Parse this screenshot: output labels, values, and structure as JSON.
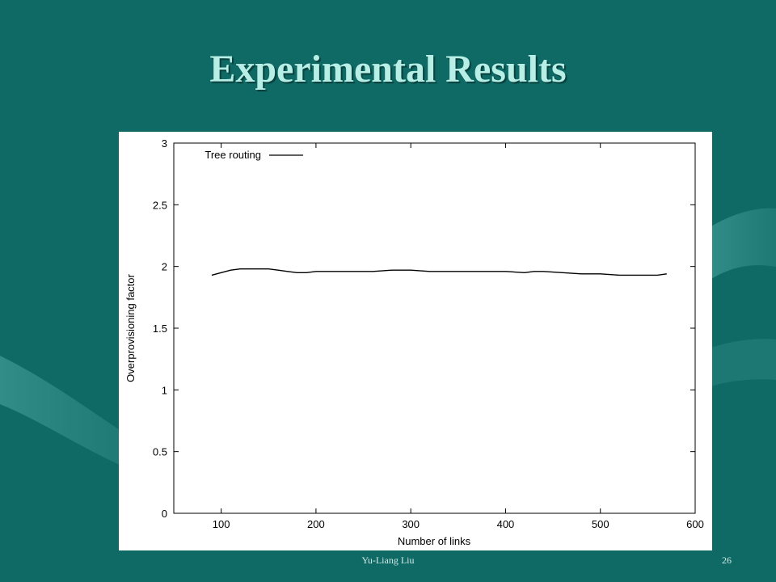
{
  "slide": {
    "title": "Experimental Results",
    "author": "Yu-Liang Liu",
    "page_number": "26"
  },
  "colors": {
    "background": "#0f6a66",
    "title": "#b7eee6",
    "line": "#000000"
  },
  "chart_data": {
    "type": "line",
    "title": "",
    "xlabel": "Number of links",
    "ylabel": "Overprovisioning factor",
    "xlim": [
      50,
      600
    ],
    "ylim": [
      0,
      3
    ],
    "xticks": [
      100,
      200,
      300,
      400,
      500,
      600
    ],
    "yticks": [
      0,
      0.5,
      1,
      1.5,
      2,
      2.5,
      3
    ],
    "legend_position": "top-left",
    "grid": false,
    "series": [
      {
        "name": "Tree routing",
        "color": "#000000",
        "x": [
          90,
          100,
          110,
          120,
          130,
          140,
          150,
          160,
          170,
          180,
          190,
          200,
          220,
          240,
          260,
          280,
          300,
          320,
          340,
          360,
          380,
          400,
          420,
          430,
          440,
          460,
          480,
          500,
          520,
          540,
          560,
          570
        ],
        "y": [
          1.93,
          1.95,
          1.97,
          1.98,
          1.98,
          1.98,
          1.98,
          1.97,
          1.96,
          1.95,
          1.95,
          1.96,
          1.96,
          1.96,
          1.96,
          1.97,
          1.97,
          1.96,
          1.96,
          1.96,
          1.96,
          1.96,
          1.95,
          1.96,
          1.96,
          1.95,
          1.94,
          1.94,
          1.93,
          1.93,
          1.93,
          1.94
        ]
      }
    ]
  }
}
